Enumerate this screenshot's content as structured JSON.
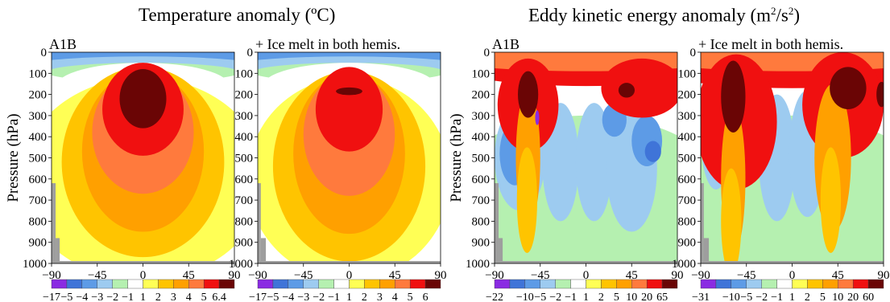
{
  "titles": {
    "temperature": "Temperature anomaly (ºC)",
    "eke_main": "Eddy kinetic energy anomaly (m",
    "eke_sup1": "2",
    "eke_mid": "/s",
    "eke_sup2": "2",
    "eke_tail": ")"
  },
  "ylabel": "Pressure (hPa)",
  "colors": {
    "c0": "#8A2BE2",
    "c1": "#3F74D8",
    "c2": "#5D9BE6",
    "c3": "#9DCBF0",
    "c4": "#B5F0B0",
    "c5": "#FFFFFF",
    "c6": "#FFFF55",
    "c7": "#FFC400",
    "c8": "#FFA000",
    "c9": "#FF7A3D",
    "c10": "#F01010",
    "c11": "#6A0505",
    "topo": "#9E9E9E"
  },
  "chart_data": [
    {
      "type": "heatmap",
      "panel_label": "A1B",
      "x": [
        -90,
        -45,
        0,
        45,
        90
      ],
      "y": [
        0,
        100,
        200,
        300,
        400,
        500,
        600,
        700,
        800,
        900,
        1000
      ],
      "xlim": [
        -90,
        90
      ],
      "ylim": [
        1000,
        0
      ],
      "ylabel": "Pressure (hPa)",
      "levels": [
        "−17",
        "−5",
        "−4",
        "−3",
        "−2",
        "−1",
        "1",
        "2",
        "3",
        "4",
        "5",
        "6.4"
      ],
      "blobs": [
        {
          "c": 1,
          "x": 0,
          "y": 20,
          "rx": 150,
          "ry": 55
        },
        {
          "c": 2,
          "x": 0,
          "y": 45,
          "rx": 140,
          "ry": 55
        },
        {
          "c": 3,
          "x": 0,
          "y": 70,
          "rx": 120,
          "ry": 50
        },
        {
          "c": 4,
          "x": 0,
          "y": 95,
          "rx": 95,
          "ry": 45
        },
        {
          "c": 5,
          "x": 0,
          "y": 160,
          "rx": 85,
          "ry": 110
        },
        {
          "c": 6,
          "x": 0,
          "y": 600,
          "rx": 120,
          "ry": 480
        },
        {
          "c": 7,
          "x": 0,
          "y": 520,
          "rx": 80,
          "ry": 450
        },
        {
          "c": 8,
          "x": 0,
          "y": 470,
          "rx": 60,
          "ry": 380
        },
        {
          "c": 9,
          "x": 0,
          "y": 380,
          "rx": 50,
          "ry": 290
        },
        {
          "c": 10,
          "x": 0,
          "y": 270,
          "rx": 40,
          "ry": 220
        },
        {
          "c": 11,
          "x": 0,
          "y": 220,
          "rx": 23,
          "ry": 140
        }
      ],
      "topo": [
        {
          "x0": -90,
          "x1": -86,
          "y": 620
        },
        {
          "x0": -86,
          "x1": -82,
          "y": 880
        }
      ]
    },
    {
      "type": "heatmap",
      "panel_label": "+ Ice melt in both hemis.",
      "x": [
        -90,
        -45,
        0,
        45,
        90
      ],
      "y": [
        0,
        100,
        200,
        300,
        400,
        500,
        600,
        700,
        800,
        900,
        1000
      ],
      "xlim": [
        -90,
        90
      ],
      "ylim": [
        1000,
        0
      ],
      "levels": [
        "−17",
        "−5",
        "−4",
        "−3",
        "−2",
        "−1",
        "1",
        "2",
        "3",
        "4",
        "5",
        "6"
      ],
      "blobs": [
        {
          "c": 1,
          "x": 0,
          "y": 20,
          "rx": 150,
          "ry": 55
        },
        {
          "c": 2,
          "x": 0,
          "y": 45,
          "rx": 140,
          "ry": 55
        },
        {
          "c": 3,
          "x": 0,
          "y": 70,
          "rx": 120,
          "ry": 50
        },
        {
          "c": 4,
          "x": 0,
          "y": 95,
          "rx": 95,
          "ry": 45
        },
        {
          "c": 5,
          "x": 0,
          "y": 160,
          "rx": 85,
          "ry": 110
        },
        {
          "c": 6,
          "x": 0,
          "y": 600,
          "rx": 100,
          "ry": 480
        },
        {
          "c": 7,
          "x": 0,
          "y": 540,
          "rx": 75,
          "ry": 450
        },
        {
          "c": 8,
          "x": 0,
          "y": 480,
          "rx": 55,
          "ry": 380
        },
        {
          "c": 9,
          "x": 0,
          "y": 390,
          "rx": 45,
          "ry": 290
        },
        {
          "c": 10,
          "x": 0,
          "y": 270,
          "rx": 33,
          "ry": 200
        },
        {
          "c": 11,
          "x": 0,
          "y": 185,
          "rx": 13,
          "ry": 18
        }
      ],
      "topo": [
        {
          "x0": -90,
          "x1": -87,
          "y": 620
        },
        {
          "x0": -87,
          "x1": -82,
          "y": 880
        }
      ]
    },
    {
      "type": "heatmap",
      "panel_label": "A1B",
      "x": [
        -90,
        -45,
        0,
        45,
        90
      ],
      "y": [
        0,
        100,
        200,
        300,
        400,
        500,
        600,
        700,
        800,
        900,
        1000
      ],
      "xlim": [
        -90,
        90
      ],
      "ylim": [
        1000,
        0
      ],
      "ylabel": "Pressure (hPa)",
      "levels": [
        "−22",
        "",
        "−10",
        "−5",
        "−2",
        "−1",
        "1",
        "2",
        "5",
        "10",
        "20",
        "65"
      ],
      "blobs": [
        {
          "c": 4,
          "x": 0,
          "y": 700,
          "rx": 140,
          "ry": 400
        },
        {
          "c": 3,
          "x": -65,
          "y": 500,
          "rx": 25,
          "ry": 250
        },
        {
          "c": 3,
          "x": -25,
          "y": 520,
          "rx": 18,
          "ry": 280
        },
        {
          "c": 3,
          "x": 8,
          "y": 520,
          "rx": 18,
          "ry": 280
        },
        {
          "c": 3,
          "x": 45,
          "y": 550,
          "rx": 25,
          "ry": 300
        },
        {
          "c": 2,
          "x": -70,
          "y": 480,
          "rx": 15,
          "ry": 150
        },
        {
          "c": 2,
          "x": 28,
          "y": 320,
          "rx": 12,
          "ry": 80
        },
        {
          "c": 2,
          "x": 60,
          "y": 420,
          "rx": 15,
          "ry": 120
        },
        {
          "c": 1,
          "x": 66,
          "y": 470,
          "rx": 8,
          "ry": 50
        },
        {
          "c": 10,
          "x": 0,
          "y": 70,
          "rx": 130,
          "ry": 90
        },
        {
          "c": 9,
          "x": 0,
          "y": 30,
          "rx": 140,
          "ry": 60
        },
        {
          "c": 10,
          "x": -57,
          "y": 250,
          "rx": 30,
          "ry": 220
        },
        {
          "c": 8,
          "x": -57,
          "y": 500,
          "rx": 12,
          "ry": 320
        },
        {
          "c": 7,
          "x": -58,
          "y": 700,
          "rx": 10,
          "ry": 250
        },
        {
          "c": 10,
          "x": 55,
          "y": 170,
          "rx": 40,
          "ry": 140
        },
        {
          "c": 11,
          "x": -57,
          "y": 200,
          "rx": 10,
          "ry": 110
        },
        {
          "c": 11,
          "x": 40,
          "y": 180,
          "rx": 8,
          "ry": 35
        },
        {
          "c": 0,
          "x": -48,
          "y": 310,
          "rx": 2,
          "ry": 35
        }
      ],
      "topo": [
        {
          "x0": -90,
          "x1": -86,
          "y": 620
        },
        {
          "x0": -86,
          "x1": -82,
          "y": 880
        }
      ]
    },
    {
      "type": "heatmap",
      "panel_label": "+ Ice melt in both hemis.",
      "x": [
        -90,
        -45,
        0,
        45,
        90
      ],
      "y": [
        0,
        100,
        200,
        300,
        400,
        500,
        600,
        700,
        800,
        900,
        1000
      ],
      "xlim": [
        -90,
        90
      ],
      "ylim": [
        1000,
        0
      ],
      "levels": [
        "−31",
        "",
        "−10",
        "−5",
        "−2",
        "−1",
        "1",
        "2",
        "5",
        "10",
        "20",
        "60"
      ],
      "blobs": [
        {
          "c": 4,
          "x": 0,
          "y": 700,
          "rx": 140,
          "ry": 400
        },
        {
          "c": 3,
          "x": -75,
          "y": 400,
          "rx": 15,
          "ry": 250
        },
        {
          "c": 3,
          "x": -15,
          "y": 500,
          "rx": 18,
          "ry": 300
        },
        {
          "c": 3,
          "x": 15,
          "y": 480,
          "rx": 18,
          "ry": 300
        },
        {
          "c": 10,
          "x": 0,
          "y": 70,
          "rx": 140,
          "ry": 100
        },
        {
          "c": 9,
          "x": 0,
          "y": 30,
          "rx": 140,
          "ry": 60
        },
        {
          "c": 10,
          "x": -55,
          "y": 330,
          "rx": 40,
          "ry": 320
        },
        {
          "c": 8,
          "x": -58,
          "y": 600,
          "rx": 12,
          "ry": 350
        },
        {
          "c": 7,
          "x": -60,
          "y": 800,
          "rx": 10,
          "ry": 250
        },
        {
          "c": 10,
          "x": 50,
          "y": 250,
          "rx": 40,
          "ry": 250
        },
        {
          "c": 8,
          "x": 40,
          "y": 500,
          "rx": 18,
          "ry": 350
        },
        {
          "c": 7,
          "x": 38,
          "y": 700,
          "rx": 10,
          "ry": 250
        },
        {
          "c": 11,
          "x": -58,
          "y": 210,
          "rx": 12,
          "ry": 170
        },
        {
          "c": 11,
          "x": 55,
          "y": 170,
          "rx": 18,
          "ry": 100
        },
        {
          "c": 11,
          "x": 88,
          "y": 200,
          "rx": 5,
          "ry": 60
        }
      ],
      "topo": [
        {
          "x0": -90,
          "x1": -87,
          "y": 620
        },
        {
          "x0": -87,
          "x1": -82,
          "y": 880
        }
      ]
    }
  ]
}
